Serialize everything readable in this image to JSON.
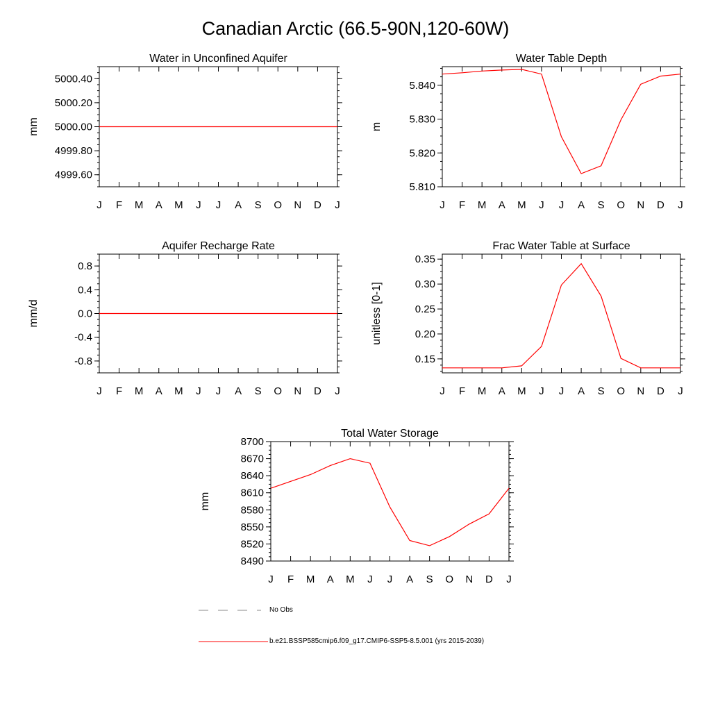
{
  "figure": {
    "title": "Canadian Arctic (66.5-90N,120-60W)",
    "colors": {
      "series": "#ff0000",
      "axis": "#000000",
      "obs": "#888888"
    }
  },
  "legend": {
    "obs_label": "No Obs",
    "model_label": "b.e21.BSSP585cmip6.f09_g17.CMIP6-SSP5-8.5.001 (yrs 2015-2039)"
  },
  "chart_data": [
    {
      "type": "line",
      "title": "Water in Unconfined Aquifer",
      "xlabel": "",
      "ylabel": "mm",
      "categories": [
        "J",
        "F",
        "M",
        "A",
        "M",
        "J",
        "J",
        "A",
        "S",
        "O",
        "N",
        "D",
        "J"
      ],
      "yticks": [
        4999.6,
        4999.8,
        5000.0,
        5000.2,
        5000.4
      ],
      "yticklabels": [
        "4999.60",
        "4999.80",
        "5000.00",
        "5000.20",
        "5000.40"
      ],
      "ylim": [
        4999.5,
        5000.5
      ],
      "series": [
        {
          "name": "model",
          "values": [
            5000.0,
            5000.0,
            5000.0,
            5000.0,
            5000.0,
            5000.0,
            5000.0,
            5000.0,
            5000.0,
            5000.0,
            5000.0,
            5000.0,
            5000.0
          ]
        }
      ]
    },
    {
      "type": "line",
      "title": "Water Table Depth",
      "xlabel": "",
      "ylabel": "m",
      "categories": [
        "J",
        "F",
        "M",
        "A",
        "M",
        "J",
        "J",
        "A",
        "S",
        "O",
        "N",
        "D",
        "J"
      ],
      "yticks": [
        5.81,
        5.82,
        5.83,
        5.84
      ],
      "yticklabels": [
        "5.810",
        "5.820",
        "5.830",
        "5.840"
      ],
      "ylim": [
        5.81,
        5.8455
      ],
      "series": [
        {
          "name": "model",
          "values": [
            5.8433,
            5.8437,
            5.8442,
            5.8445,
            5.8447,
            5.8433,
            5.8248,
            5.8139,
            5.8162,
            5.8298,
            5.8403,
            5.8427,
            5.8433
          ]
        }
      ]
    },
    {
      "type": "line",
      "title": "Aquifer Recharge Rate",
      "xlabel": "",
      "ylabel": "mm/d",
      "categories": [
        "J",
        "F",
        "M",
        "A",
        "M",
        "J",
        "J",
        "A",
        "S",
        "O",
        "N",
        "D",
        "J"
      ],
      "yticks": [
        -0.8,
        -0.4,
        0.0,
        0.4,
        0.8
      ],
      "yticklabels": [
        "-0.8",
        "-0.4",
        "0.0",
        "0.4",
        "0.8"
      ],
      "ylim": [
        -1.0,
        1.0
      ],
      "series": [
        {
          "name": "model",
          "values": [
            0,
            0,
            0,
            0,
            0,
            0,
            0,
            0,
            0,
            0,
            0,
            0,
            0
          ]
        }
      ]
    },
    {
      "type": "line",
      "title": "Frac Water Table at Surface",
      "xlabel": "",
      "ylabel": "unitless [0-1]",
      "categories": [
        "J",
        "F",
        "M",
        "A",
        "M",
        "J",
        "J",
        "A",
        "S",
        "O",
        "N",
        "D",
        "J"
      ],
      "yticks": [
        0.15,
        0.2,
        0.25,
        0.3,
        0.35
      ],
      "yticklabels": [
        "0.15",
        "0.20",
        "0.25",
        "0.30",
        "0.35"
      ],
      "ylim": [
        0.122,
        0.36
      ],
      "series": [
        {
          "name": "model",
          "values": [
            0.132,
            0.132,
            0.132,
            0.132,
            0.136,
            0.175,
            0.298,
            0.341,
            0.276,
            0.151,
            0.132,
            0.132,
            0.132
          ]
        }
      ]
    },
    {
      "type": "line",
      "title": "Total Water Storage",
      "xlabel": "",
      "ylabel": "mm",
      "categories": [
        "J",
        "F",
        "M",
        "A",
        "M",
        "J",
        "J",
        "A",
        "S",
        "O",
        "N",
        "D",
        "J"
      ],
      "yticks": [
        8490,
        8520,
        8550,
        8580,
        8610,
        8640,
        8670,
        8700
      ],
      "yticklabels": [
        "8490",
        "8520",
        "8550",
        "8580",
        "8610",
        "8640",
        "8670",
        "8700"
      ],
      "ylim": [
        8490,
        8700
      ],
      "series": [
        {
          "name": "model",
          "values": [
            8618,
            8630,
            8642,
            8658,
            8670,
            8662,
            8585,
            8526,
            8517,
            8533,
            8555,
            8573,
            8618
          ]
        }
      ]
    }
  ]
}
